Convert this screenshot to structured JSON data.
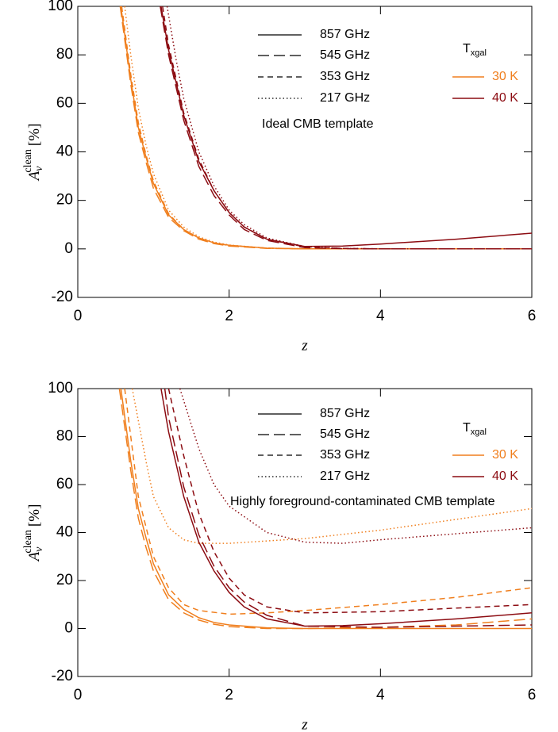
{
  "chart_data": [
    {
      "type": "line",
      "xlim": [
        0,
        6
      ],
      "ylim": [
        -20,
        100
      ],
      "xticks": [
        0,
        2,
        4,
        6
      ],
      "yticks": [
        -20,
        0,
        20,
        40,
        60,
        80,
        100
      ],
      "x_label": "z",
      "y_label": {
        "symbol": "A",
        "subscript": "ν",
        "superscript": "clean",
        "unit": "[%]"
      },
      "annotation": "Ideal CMB template",
      "legend": {
        "frequencies": [
          {
            "label": "857 GHz",
            "dash": "solid"
          },
          {
            "label": "545 GHz",
            "dash": "longdash"
          },
          {
            "label": "353 GHz",
            "dash": "dash"
          },
          {
            "label": "217 GHz",
            "dash": "dot"
          }
        ],
        "temperature_title": {
          "symbol": "T",
          "subscript": "xgal"
        },
        "temperatures": [
          {
            "label": "30 K",
            "color": "#f07f1e"
          },
          {
            "label": "40 K",
            "color": "#8c0c12"
          }
        ]
      },
      "series": [
        {
          "frequency": "857 GHz",
          "temperature": "30 K",
          "x": [
            0.57,
            0.7,
            0.8,
            0.9,
            1.0,
            1.2,
            1.4,
            1.6,
            1.8,
            2.0,
            2.5,
            3,
            4,
            5,
            6
          ],
          "values": [
            100,
            70,
            50,
            38,
            27,
            14,
            8,
            4.5,
            2.5,
            1.5,
            0.3,
            0,
            0,
            0,
            0
          ]
        },
        {
          "frequency": "545 GHz",
          "temperature": "30 K",
          "x": [
            0.56,
            0.7,
            0.8,
            0.9,
            1.0,
            1.2,
            1.4,
            1.6,
            1.8,
            2.0,
            2.5,
            3,
            4,
            5,
            6
          ],
          "values": [
            100,
            68,
            48,
            36,
            25,
            13,
            7.5,
            4,
            2.2,
            1.2,
            0.2,
            0,
            0,
            0,
            0
          ]
        },
        {
          "frequency": "353 GHz",
          "temperature": "30 K",
          "x": [
            0.58,
            0.7,
            0.8,
            0.9,
            1.0,
            1.2,
            1.4,
            1.6,
            1.8,
            2.0,
            2.5,
            3,
            4,
            5,
            6
          ],
          "values": [
            100,
            72,
            52,
            39,
            28,
            14.5,
            8,
            4.5,
            2.5,
            1.4,
            0.3,
            0,
            0,
            0,
            0
          ]
        },
        {
          "frequency": "217 GHz",
          "temperature": "30 K",
          "x": [
            0.62,
            0.7,
            0.8,
            0.9,
            1.0,
            1.2,
            1.4,
            1.6,
            1.8,
            2.0,
            2.5,
            3,
            4,
            5,
            6
          ],
          "values": [
            100,
            80,
            58,
            43,
            31,
            16,
            9,
            5,
            2.8,
            1.6,
            0.3,
            0,
            0,
            0,
            0
          ]
        },
        {
          "frequency": "857 GHz",
          "temperature": "40 K",
          "x": [
            1.1,
            1.2,
            1.4,
            1.6,
            1.8,
            2.0,
            2.2,
            2.5,
            3.0,
            3.5,
            4,
            5,
            6
          ],
          "values": [
            100,
            82,
            55,
            36,
            24,
            15,
            9,
            4,
            1,
            1.2,
            2,
            4,
            6.5
          ]
        },
        {
          "frequency": "545 GHz",
          "temperature": "40 K",
          "x": [
            1.09,
            1.2,
            1.4,
            1.6,
            1.8,
            2.0,
            2.2,
            2.5,
            3.0,
            3.5,
            4,
            5,
            6
          ],
          "values": [
            100,
            80,
            53,
            34,
            22,
            14,
            8,
            3.5,
            0.5,
            0.1,
            0,
            0,
            0
          ]
        },
        {
          "frequency": "353 GHz",
          "temperature": "40 K",
          "x": [
            1.12,
            1.2,
            1.4,
            1.6,
            1.8,
            2.0,
            2.2,
            2.5,
            3.0,
            3.5,
            4,
            5,
            6
          ],
          "values": [
            100,
            84,
            56,
            37,
            24,
            15,
            9,
            4,
            0.8,
            0.2,
            0,
            0,
            0
          ]
        },
        {
          "frequency": "217 GHz",
          "temperature": "40 K",
          "x": [
            1.18,
            1.3,
            1.4,
            1.6,
            1.8,
            2.0,
            2.2,
            2.5,
            3.0,
            3.5,
            4,
            5,
            6
          ],
          "values": [
            100,
            78,
            62,
            40,
            26,
            16,
            10,
            4.5,
            1,
            0.2,
            0,
            0,
            0
          ]
        }
      ]
    },
    {
      "type": "line",
      "xlim": [
        0,
        6
      ],
      "ylim": [
        -20,
        100
      ],
      "xticks": [
        0,
        2,
        4,
        6
      ],
      "yticks": [
        -20,
        0,
        20,
        40,
        60,
        80,
        100
      ],
      "x_label": "z",
      "y_label": {
        "symbol": "A",
        "subscript": "ν",
        "superscript": "clean",
        "unit": "[%]"
      },
      "annotation": "Highly foreground-contaminated CMB template",
      "legend": {
        "frequencies": [
          {
            "label": "857 GHz",
            "dash": "solid"
          },
          {
            "label": "545 GHz",
            "dash": "longdash"
          },
          {
            "label": "353 GHz",
            "dash": "dash"
          },
          {
            "label": "217 GHz",
            "dash": "dot"
          }
        ],
        "temperature_title": {
          "symbol": "T",
          "subscript": "xgal"
        },
        "temperatures": [
          {
            "label": "30 K",
            "color": "#f07f1e"
          },
          {
            "label": "40 K",
            "color": "#8c0c12"
          }
        ]
      },
      "series": [
        {
          "frequency": "857 GHz",
          "temperature": "30 K",
          "x": [
            0.57,
            0.7,
            0.8,
            0.9,
            1.0,
            1.2,
            1.4,
            1.6,
            1.8,
            2.0,
            2.5,
            3,
            4,
            5,
            6
          ],
          "values": [
            100,
            70,
            50,
            38,
            27,
            14,
            8,
            4.5,
            2.5,
            1.5,
            0.3,
            0,
            0,
            0,
            0
          ]
        },
        {
          "frequency": "545 GHz",
          "temperature": "30 K",
          "x": [
            0.55,
            0.7,
            0.8,
            0.9,
            1.0,
            1.2,
            1.4,
            1.6,
            1.8,
            2.0,
            2.5,
            3,
            4,
            5,
            6
          ],
          "values": [
            100,
            66,
            46,
            34,
            24,
            12,
            6.5,
            3.5,
            1.8,
            0.8,
            0,
            0,
            0.5,
            1.5,
            4
          ]
        },
        {
          "frequency": "353 GHz",
          "temperature": "30 K",
          "x": [
            0.62,
            0.8,
            1.0,
            1.2,
            1.4,
            1.6,
            2.0,
            2.5,
            3,
            4,
            5,
            6
          ],
          "values": [
            100,
            55,
            30,
            17,
            10,
            7.5,
            6,
            6.5,
            7.5,
            10,
            13,
            17
          ]
        },
        {
          "frequency": "217 GHz",
          "temperature": "30 K",
          "x": [
            0.72,
            0.9,
            1.0,
            1.2,
            1.4,
            1.6,
            2.0,
            3,
            4,
            5,
            6
          ],
          "values": [
            100,
            70,
            55,
            42,
            37,
            35.5,
            35.5,
            37.5,
            41,
            45.5,
            50
          ]
        },
        {
          "frequency": "857 GHz",
          "temperature": "40 K",
          "x": [
            1.1,
            1.2,
            1.4,
            1.6,
            1.8,
            2.0,
            2.2,
            2.5,
            3.0,
            3.5,
            4,
            5,
            6
          ],
          "values": [
            100,
            82,
            55,
            36,
            24,
            15,
            9,
            4,
            1,
            1.2,
            2,
            4,
            6.5
          ]
        },
        {
          "frequency": "545 GHz",
          "temperature": "40 K",
          "x": [
            1.15,
            1.2,
            1.4,
            1.6,
            1.8,
            2.0,
            2.2,
            2.5,
            3.0,
            4,
            5,
            6
          ],
          "values": [
            100,
            88,
            59,
            39,
            26,
            17,
            11,
            5.5,
            1,
            0.5,
            1,
            1.5
          ]
        },
        {
          "frequency": "353 GHz",
          "temperature": "40 K",
          "x": [
            1.2,
            1.4,
            1.6,
            1.8,
            2.0,
            2.2,
            2.5,
            3,
            4,
            5,
            6
          ],
          "values": [
            100,
            72,
            48,
            32,
            21,
            14,
            9,
            6.5,
            7,
            8.5,
            10
          ]
        },
        {
          "frequency": "217 GHz",
          "temperature": "40 K",
          "x": [
            1.35,
            1.6,
            1.8,
            2.0,
            2.5,
            3,
            3.5,
            4,
            5,
            6
          ],
          "values": [
            100,
            75,
            60,
            51,
            40,
            36,
            35.5,
            37,
            39.5,
            42
          ]
        }
      ]
    }
  ]
}
